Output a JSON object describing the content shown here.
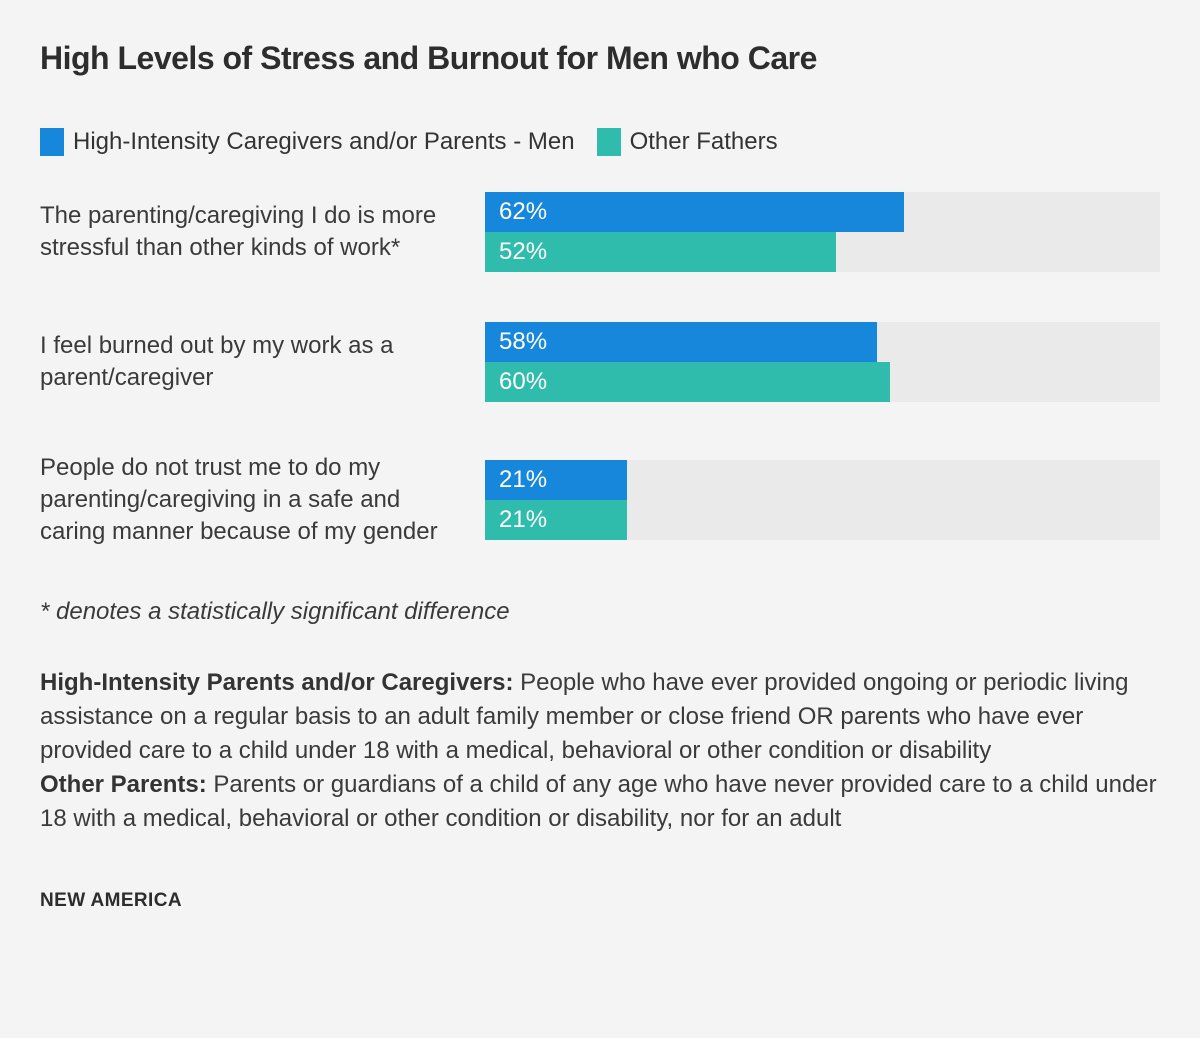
{
  "title": "High Levels of Stress and Burnout for Men who Care",
  "colors": {
    "background": "#f4f4f4",
    "bar_track": "#eaeaea",
    "series1_blue": "#1787db",
    "series2_teal": "#2fbcac",
    "value_label": "#ffffff",
    "text": "#3a3a3a"
  },
  "legend": {
    "items": [
      {
        "label": "High-Intensity Caregivers and/or Parents - Men",
        "color": "#1787db"
      },
      {
        "label": "Other Fathers",
        "color": "#2fbcac"
      }
    ]
  },
  "chart_data": {
    "type": "bar",
    "orientation": "horizontal",
    "title": "High Levels of Stress and Burnout for Men who Care",
    "xlim": [
      0,
      100
    ],
    "unit": "%",
    "grid": false,
    "legend_position": "top",
    "categories": [
      "The parenting/caregiving I do is more stressful than other kinds of work*",
      "I feel burned out by my work as a parent/caregiver",
      "People do not trust me to do my parenting/caregiving in a safe and caring manner because of my gender"
    ],
    "series": [
      {
        "name": "High-Intensity Caregivers and/or Parents - Men",
        "color": "#1787db",
        "values": [
          62,
          58,
          21
        ]
      },
      {
        "name": "Other Fathers",
        "color": "#2fbcac",
        "values": [
          52,
          60,
          21
        ]
      }
    ]
  },
  "footnote": "* denotes a statistically significant difference",
  "definitions": [
    {
      "term": "High-Intensity Parents and/or Caregivers:",
      "desc": " People who have ever provided ongoing or periodic living assistance on a regular basis to an adult family member or close friend OR parents who have ever provided care to a child under 18 with a medical, behavioral or other condition or disability"
    },
    {
      "term": "Other Parents:",
      "desc": " Parents or guardians of a child of any age who have never provided care to a child under 18 with a medical, behavioral or other condition or disability, nor for an adult"
    }
  ],
  "source": "NEW AMERICA"
}
